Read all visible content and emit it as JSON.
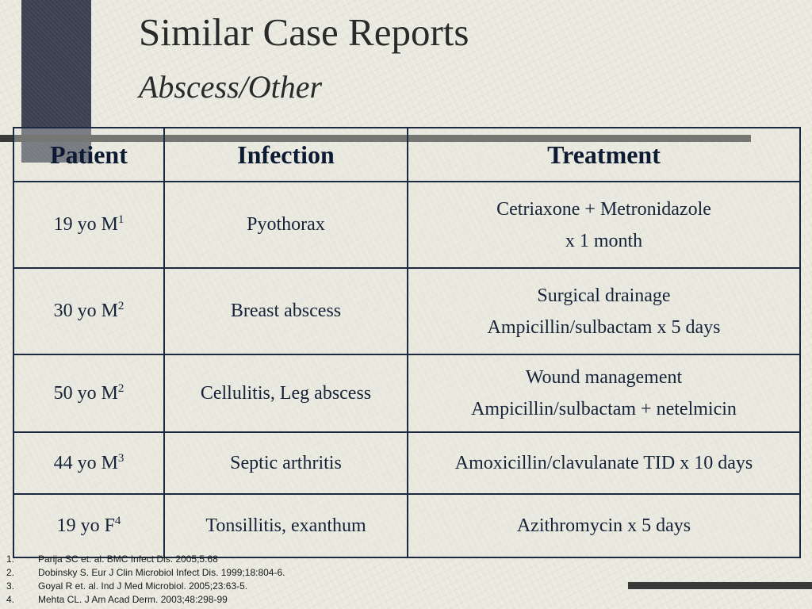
{
  "title": "Similar Case Reports",
  "subtitle": "Abscess/Other",
  "table": {
    "headers": [
      "Patient",
      "Infection",
      "Treatment"
    ],
    "rows": [
      {
        "patient": "19 yo M",
        "ref": "1",
        "infection": "Pyothorax",
        "treatment": [
          "Cetriaxone + Metronidazole",
          "x 1 month"
        ]
      },
      {
        "patient": "30 yo M",
        "ref": "2",
        "infection": "Breast abscess",
        "treatment": [
          "Surgical drainage",
          "Ampicillin/sulbactam x 5 days"
        ]
      },
      {
        "patient": "50 yo M",
        "ref": "2",
        "infection": "Cellulitis, Leg abscess",
        "treatment": [
          "Wound management",
          "Ampicillin/sulbactam + netelmicin"
        ]
      },
      {
        "patient": "44 yo M",
        "ref": "3",
        "infection": "Septic arthritis",
        "treatment": [
          "Amoxicillin/clavulanate TID x 10 days"
        ]
      },
      {
        "patient": "19 yo F",
        "ref": "4",
        "infection": "Tonsillitis, exanthum",
        "treatment": [
          "Azithromycin x 5 days"
        ]
      }
    ]
  },
  "references": [
    {
      "num": "1.",
      "text": "Parija SC et. al. BMC Infect Dis.  2005;5:68"
    },
    {
      "num": "2.",
      "text": "Dobinsky S. Eur J Clin Microbiol Infect Dis. 1999;18:804-6."
    },
    {
      "num": "3.",
      "text": "Goyal R et. al. Ind J Med Microbiol. 2005;23:63-5."
    },
    {
      "num": "4.",
      "text": "Mehta CL. J Am Acad Derm. 2003;48:298-99"
    }
  ]
}
